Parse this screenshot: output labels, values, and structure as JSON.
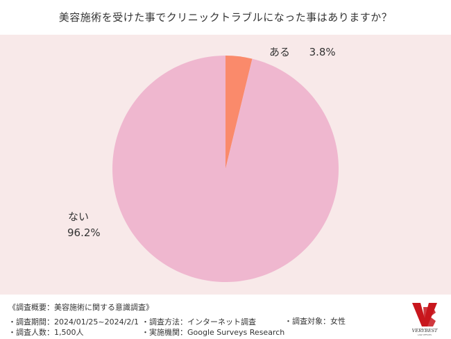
{
  "title": "美容施術を受けた事でクリニックトラブルになった事はありますか？",
  "colors": {
    "panel_bg": "#f8e9e9",
    "slice_nai": "#efb7cf",
    "slice_aru": "#fa8a6b",
    "logo_red": "#c8161d"
  },
  "chart_data": {
    "type": "pie",
    "slices": [
      {
        "label": "ある",
        "value": 3.8,
        "display": "3.8%",
        "color": "#fa8a6b"
      },
      {
        "label": "ない",
        "value": 96.2,
        "display": "96.2%",
        "color": "#efb7cf"
      }
    ],
    "start": "12 o'clock",
    "direction": "clockwise"
  },
  "labels": {
    "aru_name": "ある",
    "aru_value": "3.8%",
    "nai_name": "ない",
    "nai_value": "96.2%"
  },
  "footer": {
    "summary": "《調査概要：美容施術に関する意識調査》",
    "period": "・調査期間：2024/01/25~2024/2/1",
    "method": "・調査方法：インターネット調査",
    "target": "・調査対象：女性",
    "count": "・調査人数：1,500人",
    "agency": "・実施機関：Google Surveys  Research"
  },
  "logo": {
    "brand": "VERYBEST",
    "sub": "LAW OFFICES"
  }
}
